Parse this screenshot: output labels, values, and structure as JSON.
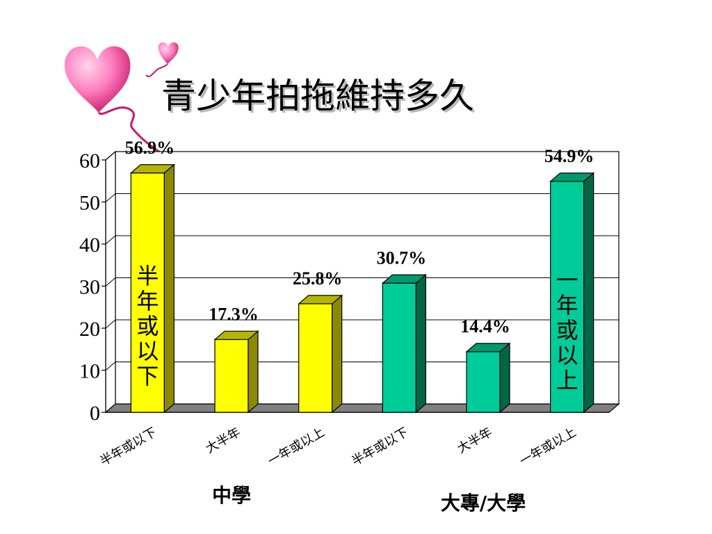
{
  "slide": {
    "title": "青少年拍拖維持多久"
  },
  "decoration": {
    "icon": "heart-balloons-icon",
    "colors": [
      "#ff7fbf",
      "#c8186c"
    ]
  },
  "chart_data": {
    "type": "bar",
    "style": "3d",
    "categories": [
      "半年或以下",
      "大半年",
      "一年或以上",
      "半年或以下",
      "大半年",
      "一年或以上"
    ],
    "values": [
      56.9,
      17.3,
      25.8,
      30.7,
      14.4,
      54.9
    ],
    "bar_heights": [
      56.9,
      17.3,
      25.8,
      30.7,
      14.4,
      54.9
    ],
    "data_labels": [
      "56.9%",
      "17.3%",
      "25.8%",
      "30.7%",
      "14.4%",
      "54.9%"
    ],
    "groups": [
      {
        "name": "中學",
        "bars": [
          0,
          1,
          2
        ],
        "color": "#ffff00"
      },
      {
        "name": "大專/大學",
        "bars": [
          3,
          4,
          5
        ],
        "color": "#00cc99"
      }
    ],
    "in_bar_labels": [
      "半年或以下",
      "一年或以上"
    ],
    "y_ticks": [
      "0",
      "10",
      "20",
      "30",
      "40",
      "50",
      "60"
    ],
    "ylim": [
      0,
      60
    ],
    "grid": true,
    "title": "",
    "xlabel": "",
    "ylabel": ""
  }
}
